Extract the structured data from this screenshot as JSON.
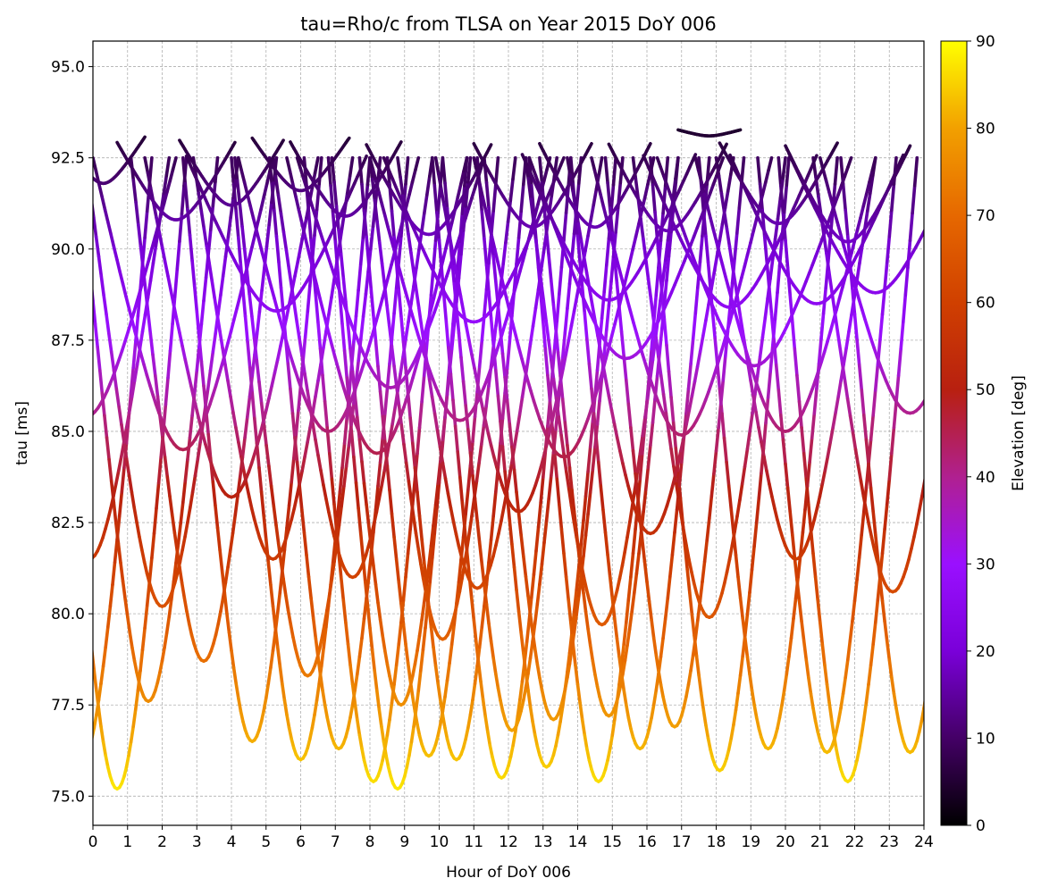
{
  "chart_data": {
    "type": "scatter",
    "title": "tau=Rho/c from TLSA on Year 2015 DoY 006",
    "xlabel": "Hour of DoY 006",
    "ylabel": "tau [ms]",
    "xlim": [
      0,
      24
    ],
    "ylim": [
      74.2,
      95.7
    ],
    "x_ticks": [
      "0",
      "1",
      "2",
      "3",
      "4",
      "5",
      "6",
      "7",
      "8",
      "9",
      "10",
      "11",
      "12",
      "13",
      "14",
      "15",
      "16",
      "17",
      "18",
      "19",
      "20",
      "21",
      "22",
      "23",
      "24"
    ],
    "y_ticks": [
      "75.0",
      "77.5",
      "80.0",
      "82.5",
      "85.0",
      "87.5",
      "90.0",
      "92.5",
      "95.0"
    ],
    "grid": true,
    "colorbar": {
      "label": "Elevation [deg]",
      "range": [
        0,
        90
      ],
      "ticks": [
        "0",
        "10",
        "20",
        "30",
        "40",
        "50",
        "60",
        "70",
        "80",
        "90"
      ],
      "colormap": "gnuplot",
      "stops": [
        "#000000",
        "#440066",
        "#7a00d9",
        "#9a10ff",
        "#b02090",
        "#b82010",
        "#d04000",
        "#e66800",
        "#f2a000",
        "#ffff00"
      ]
    },
    "passes": [
      {
        "t_min": 0.7,
        "tau_min": 75.2,
        "half_width": 2.0
      },
      {
        "t_min": 8.8,
        "tau_min": 75.2,
        "half_width": 2.0
      },
      {
        "t_min": 14.6,
        "tau_min": 75.4,
        "half_width": 2.0
      },
      {
        "t_min": 21.8,
        "tau_min": 75.4,
        "half_width": 2.0
      },
      {
        "t_min": 8.1,
        "tau_min": 75.4,
        "half_width": 2.0
      },
      {
        "t_min": 11.8,
        "tau_min": 75.5,
        "half_width": 2.0
      },
      {
        "t_min": 18.1,
        "tau_min": 75.7,
        "half_width": 2.0
      },
      {
        "t_min": 13.1,
        "tau_min": 75.8,
        "half_width": 2.0
      },
      {
        "t_min": 6.0,
        "tau_min": 76.0,
        "half_width": 2.0
      },
      {
        "t_min": 9.7,
        "tau_min": 76.1,
        "half_width": 2.0
      },
      {
        "t_min": 10.5,
        "tau_min": 76.0,
        "half_width": 2.0
      },
      {
        "t_min": 21.2,
        "tau_min": 76.2,
        "half_width": 2.0
      },
      {
        "t_min": 7.1,
        "tau_min": 76.3,
        "half_width": 2.0
      },
      {
        "t_min": 15.8,
        "tau_min": 76.3,
        "half_width": 2.0
      },
      {
        "t_min": 19.5,
        "tau_min": 76.3,
        "half_width": 2.0
      },
      {
        "t_min": 23.6,
        "tau_min": 76.2,
        "half_width": 2.0
      },
      {
        "t_min": 4.6,
        "tau_min": 76.5,
        "half_width": 2.0
      },
      {
        "t_min": -0.3,
        "tau_min": 76.0,
        "half_width": 2.0
      },
      {
        "t_min": 12.1,
        "tau_min": 76.8,
        "half_width": 2.0
      },
      {
        "t_min": 16.8,
        "tau_min": 76.9,
        "half_width": 2.0
      },
      {
        "t_min": 13.3,
        "tau_min": 77.1,
        "half_width": 2.0
      },
      {
        "t_min": 14.9,
        "tau_min": 77.2,
        "half_width": 2.0
      },
      {
        "t_min": 1.6,
        "tau_min": 77.6,
        "half_width": 2.0
      },
      {
        "t_min": 8.9,
        "tau_min": 77.5,
        "half_width": 2.0
      },
      {
        "t_min": 3.2,
        "tau_min": 78.7,
        "half_width": 2.1
      },
      {
        "t_min": 6.2,
        "tau_min": 78.3,
        "half_width": 2.1
      },
      {
        "t_min": 10.1,
        "tau_min": 79.3,
        "half_width": 2.1
      },
      {
        "t_min": 14.7,
        "tau_min": 79.7,
        "half_width": 2.2
      },
      {
        "t_min": 17.8,
        "tau_min": 79.9,
        "half_width": 2.2
      },
      {
        "t_min": 2.0,
        "tau_min": 80.2,
        "half_width": 2.2
      },
      {
        "t_min": 11.1,
        "tau_min": 80.7,
        "half_width": 2.3
      },
      {
        "t_min": 23.1,
        "tau_min": 80.6,
        "half_width": 2.3
      },
      {
        "t_min": 7.5,
        "tau_min": 81.0,
        "half_width": 2.3
      },
      {
        "t_min": 5.2,
        "tau_min": 81.5,
        "half_width": 2.3
      },
      {
        "t_min": 20.3,
        "tau_min": 81.5,
        "half_width": 2.3
      },
      {
        "t_min": -0.1,
        "tau_min": 81.5,
        "half_width": 2.3
      },
      {
        "t_min": 16.1,
        "tau_min": 82.2,
        "half_width": 2.4
      },
      {
        "t_min": 4.0,
        "tau_min": 83.2,
        "half_width": 2.5
      },
      {
        "t_min": 12.3,
        "tau_min": 82.8,
        "half_width": 2.4
      },
      {
        "t_min": 8.2,
        "tau_min": 84.4,
        "half_width": 2.6
      },
      {
        "t_min": 20.0,
        "tau_min": 85.0,
        "half_width": 2.6
      },
      {
        "t_min": 23.6,
        "tau_min": 85.5,
        "half_width": 2.6
      },
      {
        "t_min": -0.2,
        "tau_min": 85.4,
        "half_width": 2.6
      },
      {
        "t_min": 13.6,
        "tau_min": 84.3,
        "half_width": 2.6
      },
      {
        "t_min": 17.0,
        "tau_min": 84.9,
        "half_width": 2.6
      },
      {
        "t_min": 2.6,
        "tau_min": 84.5,
        "half_width": 2.6
      },
      {
        "t_min": 6.8,
        "tau_min": 85.0,
        "half_width": 2.6
      },
      {
        "t_min": 10.6,
        "tau_min": 85.3,
        "half_width": 2.6
      },
      {
        "t_min": 8.6,
        "tau_min": 86.2,
        "half_width": 2.7
      },
      {
        "t_min": 19.1,
        "tau_min": 86.8,
        "half_width": 2.8
      },
      {
        "t_min": 15.4,
        "tau_min": 87.0,
        "half_width": 2.8
      },
      {
        "t_min": 5.3,
        "tau_min": 88.3,
        "half_width": 2.6
      },
      {
        "t_min": 11.0,
        "tau_min": 88.0,
        "half_width": 2.6
      },
      {
        "t_min": 20.9,
        "tau_min": 88.5,
        "half_width": 2.5
      },
      {
        "t_min": 22.6,
        "tau_min": 88.8,
        "half_width": 2.5
      },
      {
        "t_min": 14.9,
        "tau_min": 88.6,
        "half_width": 2.5
      },
      {
        "t_min": 18.4,
        "tau_min": 88.4,
        "half_width": 2.5
      },
      {
        "t_min": 2.4,
        "tau_min": 90.8,
        "half_width": 1.7
      },
      {
        "t_min": 6.0,
        "tau_min": 91.6,
        "half_width": 1.4
      },
      {
        "t_min": 14.5,
        "tau_min": 90.6,
        "half_width": 1.6
      },
      {
        "t_min": 17.8,
        "tau_min": 93.1,
        "half_width": 0.9
      },
      {
        "t_min": 0.3,
        "tau_min": 91.8,
        "half_width": 1.2
      },
      {
        "t_min": 4.0,
        "tau_min": 91.2,
        "half_width": 1.5
      },
      {
        "t_min": 9.7,
        "tau_min": 90.4,
        "half_width": 1.8
      },
      {
        "t_min": 12.7,
        "tau_min": 90.6,
        "half_width": 1.7
      },
      {
        "t_min": 16.6,
        "tau_min": 90.5,
        "half_width": 1.7
      },
      {
        "t_min": 21.8,
        "tau_min": 90.2,
        "half_width": 1.8
      },
      {
        "t_min": 7.3,
        "tau_min": 90.9,
        "half_width": 1.6
      },
      {
        "t_min": 19.8,
        "tau_min": 90.7,
        "half_width": 1.7
      }
    ]
  }
}
